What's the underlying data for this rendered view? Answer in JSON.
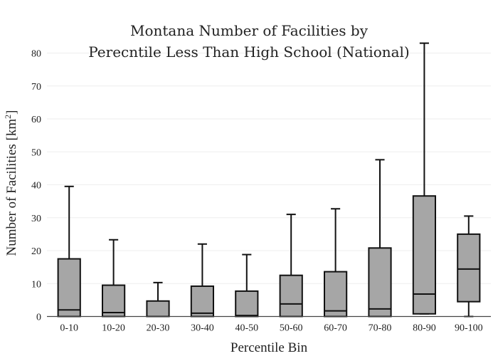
{
  "chart_data": {
    "type": "box",
    "title_lines": [
      "Montana Number of Facilities by",
      "Perecntile Less Than High School (National)"
    ],
    "xlabel": "Percentile Bin",
    "ylabel": "Number of Facilities  [km",
    "ylabel_sup": "2",
    "ylabel_close": "]",
    "ylim": [
      0,
      84
    ],
    "yticks": [
      0,
      10,
      20,
      30,
      40,
      50,
      60,
      70,
      80
    ],
    "grid": true,
    "legend": "none",
    "colors": {
      "box_fill": "#a6a6a6",
      "box_stroke": "#111111",
      "grid": "#eeeeee"
    },
    "categories": [
      "0-10",
      "10-20",
      "20-30",
      "30-40",
      "40-50",
      "50-60",
      "60-70",
      "70-80",
      "80-90",
      "90-100"
    ],
    "series": [
      {
        "boxes": [
          {
            "min": 0,
            "q1": 0,
            "median": 2,
            "q3": 17.5,
            "max": 39.5
          },
          {
            "min": 0,
            "q1": 0,
            "median": 1.2,
            "q3": 9.5,
            "max": 23.3
          },
          {
            "min": 0,
            "q1": 0,
            "median": 0,
            "q3": 4.7,
            "max": 10.3
          },
          {
            "min": 0,
            "q1": 0,
            "median": 1,
            "q3": 9.2,
            "max": 22
          },
          {
            "min": 0,
            "q1": 0,
            "median": 0.3,
            "q3": 7.7,
            "max": 18.8
          },
          {
            "min": 0,
            "q1": 0,
            "median": 3.8,
            "q3": 12.5,
            "max": 31
          },
          {
            "min": 0,
            "q1": 0,
            "median": 1.7,
            "q3": 13.6,
            "max": 32.7
          },
          {
            "min": 0,
            "q1": 0,
            "median": 2.3,
            "q3": 20.8,
            "max": 47.6
          },
          {
            "min": 0.8,
            "q1": 0.8,
            "median": 6.8,
            "q3": 36.6,
            "max": 83
          },
          {
            "min": 0,
            "q1": 4.5,
            "median": 14.4,
            "q3": 25,
            "max": 30.5
          }
        ]
      }
    ]
  }
}
